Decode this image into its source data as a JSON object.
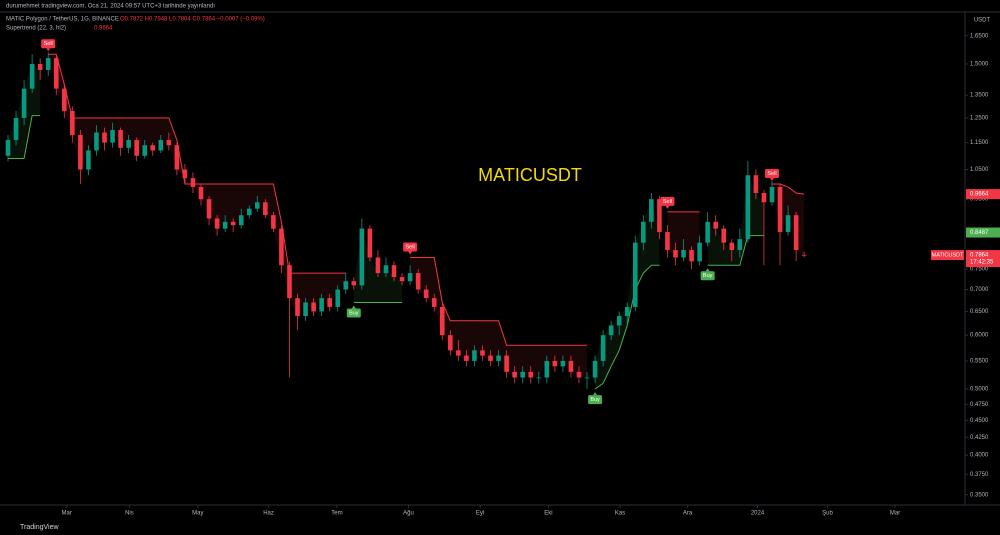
{
  "chart_data": {
    "type": "candlestick",
    "header": {
      "published": "durumehmet tradingview.com, Oca 21, 2024 09:57 UTC+3 tarihinde yayınlandı",
      "symbol_line": "MATIC Polygon / TetherUS, 1G, BINANCE",
      "ohlc_line": "O0.7872 H0.7948 L0.7804 C0.7864 −0.0007 (−0.09%)",
      "indicator": "Supertrend (22, 3, hl2)",
      "indicator_value": "0.9664"
    },
    "watermark": "MATICUSDT",
    "currency": "USDT",
    "countdown": "17:42:35",
    "footer": "TradingView",
    "buy_label": "Buy",
    "sell_label": "Sell",
    "log_scale": true,
    "up_color": "#089981",
    "down_color": "#f23645",
    "ohlc": [
      [
        1.1,
        1.18,
        1.08,
        1.16
      ],
      [
        1.16,
        1.28,
        1.14,
        1.25
      ],
      [
        1.25,
        1.42,
        1.22,
        1.38
      ],
      [
        1.38,
        1.55,
        1.36,
        1.5
      ],
      [
        1.5,
        1.53,
        1.42,
        1.47
      ],
      [
        1.47,
        1.56,
        1.44,
        1.53
      ],
      [
        1.53,
        1.54,
        1.35,
        1.38
      ],
      [
        1.38,
        1.4,
        1.25,
        1.28
      ],
      [
        1.28,
        1.3,
        1.15,
        1.18
      ],
      [
        1.18,
        1.2,
        1.0,
        1.05
      ],
      [
        1.05,
        1.14,
        1.03,
        1.12
      ],
      [
        1.12,
        1.22,
        1.1,
        1.19
      ],
      [
        1.19,
        1.21,
        1.12,
        1.15
      ],
      [
        1.15,
        1.23,
        1.13,
        1.2
      ],
      [
        1.2,
        1.21,
        1.1,
        1.13
      ],
      [
        1.13,
        1.18,
        1.11,
        1.16
      ],
      [
        1.16,
        1.17,
        1.08,
        1.1
      ],
      [
        1.1,
        1.16,
        1.09,
        1.14
      ],
      [
        1.14,
        1.15,
        1.1,
        1.12
      ],
      [
        1.12,
        1.18,
        1.11,
        1.16
      ],
      [
        1.16,
        1.19,
        1.12,
        1.14
      ],
      [
        1.14,
        1.15,
        1.03,
        1.05
      ],
      [
        1.05,
        1.07,
        1.0,
        1.02
      ],
      [
        1.02,
        1.04,
        0.97,
        0.99
      ],
      [
        0.99,
        1.0,
        0.93,
        0.95
      ],
      [
        0.95,
        0.96,
        0.87,
        0.89
      ],
      [
        0.89,
        0.9,
        0.84,
        0.86
      ],
      [
        0.86,
        0.9,
        0.85,
        0.88
      ],
      [
        0.88,
        0.89,
        0.85,
        0.87
      ],
      [
        0.87,
        0.92,
        0.86,
        0.9
      ],
      [
        0.9,
        0.93,
        0.89,
        0.92
      ],
      [
        0.92,
        0.96,
        0.91,
        0.94
      ],
      [
        0.94,
        0.95,
        0.89,
        0.9
      ],
      [
        0.9,
        0.91,
        0.85,
        0.86
      ],
      [
        0.86,
        0.87,
        0.74,
        0.76
      ],
      [
        0.76,
        0.77,
        0.52,
        0.68
      ],
      [
        0.68,
        0.69,
        0.61,
        0.64
      ],
      [
        0.64,
        0.68,
        0.63,
        0.67
      ],
      [
        0.67,
        0.68,
        0.64,
        0.65
      ],
      [
        0.65,
        0.69,
        0.64,
        0.68
      ],
      [
        0.68,
        0.69,
        0.65,
        0.66
      ],
      [
        0.66,
        0.71,
        0.65,
        0.7
      ],
      [
        0.7,
        0.74,
        0.69,
        0.72
      ],
      [
        0.72,
        0.73,
        0.7,
        0.71
      ],
      [
        0.71,
        0.89,
        0.7,
        0.86
      ],
      [
        0.86,
        0.87,
        0.77,
        0.78
      ],
      [
        0.78,
        0.8,
        0.73,
        0.74
      ],
      [
        0.74,
        0.78,
        0.73,
        0.76
      ],
      [
        0.76,
        0.77,
        0.72,
        0.73
      ],
      [
        0.73,
        0.74,
        0.71,
        0.72
      ],
      [
        0.72,
        0.76,
        0.71,
        0.74
      ],
      [
        0.74,
        0.75,
        0.69,
        0.7
      ],
      [
        0.7,
        0.71,
        0.67,
        0.68
      ],
      [
        0.68,
        0.69,
        0.65,
        0.66
      ],
      [
        0.66,
        0.67,
        0.59,
        0.6
      ],
      [
        0.6,
        0.61,
        0.56,
        0.57
      ],
      [
        0.57,
        0.59,
        0.55,
        0.56
      ],
      [
        0.56,
        0.57,
        0.54,
        0.55
      ],
      [
        0.55,
        0.58,
        0.54,
        0.57
      ],
      [
        0.57,
        0.58,
        0.55,
        0.56
      ],
      [
        0.56,
        0.57,
        0.54,
        0.55
      ],
      [
        0.55,
        0.57,
        0.54,
        0.56
      ],
      [
        0.56,
        0.57,
        0.52,
        0.53
      ],
      [
        0.53,
        0.54,
        0.51,
        0.52
      ],
      [
        0.52,
        0.54,
        0.51,
        0.53
      ],
      [
        0.53,
        0.54,
        0.51,
        0.52
      ],
      [
        0.52,
        0.53,
        0.51,
        0.52
      ],
      [
        0.52,
        0.56,
        0.51,
        0.55
      ],
      [
        0.55,
        0.56,
        0.53,
        0.54
      ],
      [
        0.54,
        0.56,
        0.53,
        0.55
      ],
      [
        0.55,
        0.56,
        0.52,
        0.53
      ],
      [
        0.53,
        0.54,
        0.51,
        0.52
      ],
      [
        0.52,
        0.53,
        0.5,
        0.52
      ],
      [
        0.52,
        0.56,
        0.51,
        0.55
      ],
      [
        0.55,
        0.61,
        0.54,
        0.6
      ],
      [
        0.6,
        0.63,
        0.59,
        0.62
      ],
      [
        0.62,
        0.65,
        0.6,
        0.64
      ],
      [
        0.64,
        0.67,
        0.62,
        0.66
      ],
      [
        0.66,
        0.84,
        0.65,
        0.82
      ],
      [
        0.82,
        0.9,
        0.8,
        0.88
      ],
      [
        0.88,
        0.97,
        0.86,
        0.95
      ],
      [
        0.95,
        0.96,
        0.83,
        0.85
      ],
      [
        0.85,
        0.87,
        0.78,
        0.8
      ],
      [
        0.8,
        0.82,
        0.76,
        0.78
      ],
      [
        0.78,
        0.83,
        0.77,
        0.8
      ],
      [
        0.8,
        0.81,
        0.75,
        0.77
      ],
      [
        0.77,
        0.84,
        0.76,
        0.82
      ],
      [
        0.82,
        0.91,
        0.81,
        0.88
      ],
      [
        0.88,
        0.9,
        0.84,
        0.86
      ],
      [
        0.86,
        0.87,
        0.8,
        0.82
      ],
      [
        0.82,
        0.83,
        0.77,
        0.8
      ],
      [
        0.8,
        0.86,
        0.78,
        0.83
      ],
      [
        0.83,
        1.08,
        0.82,
        1.03
      ],
      [
        1.03,
        1.05,
        0.95,
        0.97
      ],
      [
        0.97,
        0.98,
        0.76,
        0.94
      ],
      [
        0.94,
        1.01,
        0.93,
        0.99
      ],
      [
        0.99,
        1.0,
        0.76,
        0.85
      ],
      [
        0.85,
        0.93,
        0.84,
        0.9
      ],
      [
        0.9,
        0.91,
        0.77,
        0.8
      ],
      [
        0.7872,
        0.7948,
        0.7804,
        0.7864
      ]
    ],
    "series": [
      {
        "name": "up",
        "color": "#4caf50",
        "fill": "rgba(76,175,80,0.10)",
        "values": [
          1.09,
          1.09,
          1.09,
          1.26,
          1.26,
          null,
          null,
          null,
          null,
          null,
          null,
          null,
          null,
          null,
          null,
          null,
          null,
          null,
          null,
          null,
          null,
          null,
          null,
          null,
          null,
          null,
          null,
          null,
          null,
          null,
          null,
          null,
          null,
          null,
          null,
          null,
          null,
          null,
          null,
          null,
          null,
          null,
          null,
          0.67,
          0.67,
          0.67,
          0.67,
          0.67,
          0.67,
          0.67,
          null,
          null,
          null,
          null,
          null,
          null,
          null,
          null,
          null,
          null,
          null,
          null,
          null,
          null,
          null,
          null,
          null,
          null,
          null,
          null,
          null,
          null,
          null,
          0.5,
          0.51,
          0.54,
          0.57,
          0.62,
          0.7,
          0.74,
          0.76,
          0.76,
          null,
          null,
          null,
          null,
          null,
          0.76,
          0.76,
          0.76,
          0.76,
          0.76,
          0.84,
          0.84,
          0.84,
          null,
          null,
          null,
          null,
          null
        ]
      },
      {
        "name": "down",
        "color": "#f23645",
        "fill": "rgba(242,54,69,0.10)",
        "values": [
          null,
          null,
          null,
          null,
          null,
          1.55,
          1.55,
          1.4,
          1.25,
          1.25,
          1.25,
          1.25,
          1.25,
          1.25,
          1.25,
          1.25,
          1.25,
          1.25,
          1.25,
          1.25,
          1.25,
          1.16,
          1.0,
          1.0,
          1.0,
          1.0,
          1.0,
          1.0,
          1.0,
          1.0,
          1.0,
          1.0,
          1.0,
          1.0,
          0.88,
          0.74,
          0.74,
          0.74,
          0.74,
          0.74,
          0.74,
          0.74,
          0.74,
          null,
          null,
          null,
          null,
          null,
          null,
          null,
          0.78,
          0.78,
          0.78,
          0.78,
          0.67,
          0.63,
          0.63,
          0.63,
          0.63,
          0.63,
          0.63,
          0.63,
          0.58,
          0.58,
          0.58,
          0.58,
          0.58,
          0.58,
          0.58,
          0.58,
          0.58,
          0.58,
          0.58,
          null,
          null,
          null,
          null,
          null,
          null,
          null,
          null,
          null,
          0.91,
          0.91,
          0.91,
          0.91,
          0.91,
          null,
          null,
          null,
          null,
          null,
          null,
          null,
          null,
          1.0,
          1.0,
          0.99,
          0.97,
          0.9664
        ]
      }
    ],
    "price_labels": [
      {
        "value": 0.9664,
        "color": "#f23645"
      },
      {
        "value": 0.8487,
        "color": "#4caf50"
      },
      {
        "value": 0.7864,
        "color": "#f23645"
      }
    ],
    "xlim": [
      0,
      119
    ],
    "xticks": [
      {
        "value": 7.3,
        "label": "Mar"
      },
      {
        "value": 15.1,
        "label": "Nis"
      },
      {
        "value": 23.6,
        "label": "May"
      },
      {
        "value": 32.4,
        "label": "Haz"
      },
      {
        "value": 40.9,
        "label": "Tem"
      },
      {
        "value": 49.8,
        "label": "Ağu"
      },
      {
        "value": 58.7,
        "label": "Eyl"
      },
      {
        "value": 67.2,
        "label": "Eki"
      },
      {
        "value": 76.1,
        "label": "Kas"
      },
      {
        "value": 84.5,
        "label": "Ara"
      },
      {
        "value": 93.2,
        "label": "2024"
      },
      {
        "value": 101.9,
        "label": "Şub"
      },
      {
        "value": 110.3,
        "label": "Mar"
      }
    ],
    "ylim": [
      0.338,
      1.77
    ],
    "yticks": [
      {
        "value": 1.65,
        "label": "1.6500"
      },
      {
        "value": 1.5,
        "label": "1.5000"
      },
      {
        "value": 1.35,
        "label": "1.3500"
      },
      {
        "value": 1.25,
        "label": "1.2500"
      },
      {
        "value": 1.15,
        "label": "1.1500"
      },
      {
        "value": 1.05,
        "label": "1.0500"
      },
      {
        "value": 0.95,
        "label": "0.9500"
      },
      {
        "value": 0.85,
        "label": "0.8500"
      },
      {
        "value": 0.75,
        "label": "0.7500"
      },
      {
        "value": 0.7,
        "label": "0.7000"
      },
      {
        "value": 0.65,
        "label": "0.6500"
      },
      {
        "value": 0.6,
        "label": "0.6000"
      },
      {
        "value": 0.55,
        "label": "0.5500"
      },
      {
        "value": 0.5,
        "label": "0.5000"
      },
      {
        "value": 0.475,
        "label": "0.4750"
      },
      {
        "value": 0.45,
        "label": "0.4500"
      },
      {
        "value": 0.425,
        "label": "0.4250"
      },
      {
        "value": 0.4,
        "label": "0.4000"
      },
      {
        "value": 0.375,
        "label": "0.3750"
      },
      {
        "value": 0.35,
        "label": "0.3500"
      }
    ],
    "grid": false
  }
}
